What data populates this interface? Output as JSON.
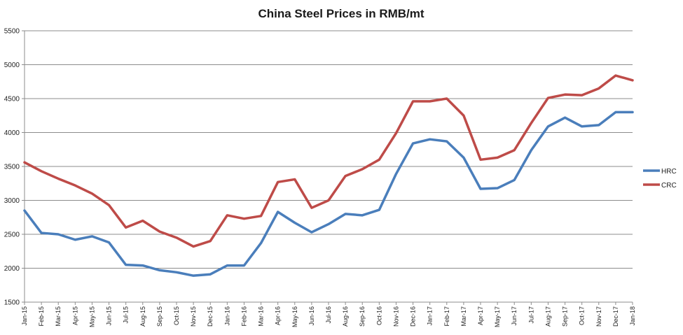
{
  "chart_data": {
    "type": "line",
    "title": "China Steel Prices in RMB/mt",
    "xlabel": "",
    "ylabel": "",
    "ylim": [
      1500,
      5500
    ],
    "yticks": [
      1500,
      2000,
      2500,
      3000,
      3500,
      4000,
      4500,
      5000,
      5500
    ],
    "grid": true,
    "legend": "right",
    "categories": [
      "Jan-15",
      "Feb-15",
      "Mar-15",
      "Apr-15",
      "May-15",
      "Jun-15",
      "Jul-15",
      "Aug-15",
      "Sep-15",
      "Oct-15",
      "Nov-15",
      "Dec-15",
      "Jan-16",
      "Feb-16",
      "Mar-16",
      "Apr-16",
      "May-16",
      "Jun-16",
      "Jul-16",
      "Aug-16",
      "Sep-16",
      "Oct-16",
      "Nov-16",
      "Dec-16",
      "Jan-17",
      "Feb-17",
      "Mar-17",
      "Apr-17",
      "May-17",
      "Jun-17",
      "Jul-17",
      "Aug-17",
      "Sep-17",
      "Oct-17",
      "Nov-17",
      "Dec-17",
      "Jan-18"
    ],
    "series": [
      {
        "name": "HRC",
        "color": "#4a7ebb",
        "values": [
          2850,
          2520,
          2500,
          2420,
          2470,
          2380,
          2050,
          2040,
          1970,
          1940,
          1890,
          1910,
          2040,
          2040,
          2370,
          2830,
          2670,
          2530,
          2650,
          2800,
          2780,
          2860,
          3390,
          3840,
          3900,
          3870,
          3630,
          3170,
          3180,
          3300,
          3740,
          4090,
          4220,
          4090,
          4110,
          4300,
          4300
        ]
      },
      {
        "name": "CRC",
        "color": "#be4b48",
        "values": [
          3560,
          3430,
          3320,
          3220,
          3100,
          2930,
          2600,
          2700,
          2540,
          2450,
          2320,
          2400,
          2780,
          2730,
          2770,
          3270,
          3310,
          2890,
          3000,
          3360,
          3460,
          3600,
          3990,
          4460,
          4460,
          4500,
          4250,
          3600,
          3630,
          3740,
          4140,
          4510,
          4560,
          4550,
          4650,
          4840,
          4770
        ]
      }
    ]
  }
}
